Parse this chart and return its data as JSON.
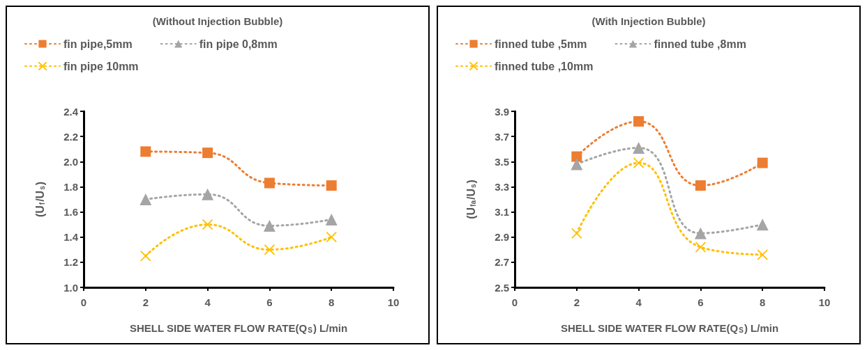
{
  "chart_data": [
    {
      "type": "line",
      "title": "(Without Injection Bubble)",
      "xlabel": "SHELL SIDE WATER FLOW RATE(Q$_{S}$) L/min",
      "ylabel": "(U$_{f}$/U$_{s}$)",
      "x": [
        2,
        4,
        6,
        8
      ],
      "series": [
        {
          "name": "fin pipe,5mm",
          "color": "#ed7d31",
          "marker": "square",
          "values": [
            2.08,
            2.07,
            1.83,
            1.81
          ]
        },
        {
          "name": "fin pipe 0,8mm",
          "color": "#a5a5a5",
          "marker": "triangle",
          "values": [
            1.7,
            1.74,
            1.49,
            1.54
          ]
        },
        {
          "name": "fin pipe 10mm",
          "color": "#ffc000",
          "marker": "cross",
          "values": [
            1.25,
            1.5,
            1.3,
            1.4
          ]
        }
      ],
      "xlim": [
        0,
        10
      ],
      "xticks": [
        0,
        2,
        4,
        6,
        8,
        10
      ],
      "ylim": [
        1.0,
        2.4
      ],
      "yticks": [
        "1.0",
        1.2,
        1.4,
        1.6,
        1.8,
        "2.0",
        2.2,
        2.4
      ],
      "grid": false,
      "legend": "top",
      "line_style": "dotted"
    },
    {
      "type": "line",
      "title": "(With Injection Bubble)",
      "xlabel": "SHELL SIDE WATER FLOW RATE(Q$_{S}$) L/min",
      "ylabel": "(U$_{fa}$/U$_{s}$)",
      "x": [
        2,
        4,
        6,
        8
      ],
      "series": [
        {
          "name": "finned tube ,5mm",
          "color": "#ed7d31",
          "marker": "square",
          "values": [
            3.54,
            3.82,
            3.31,
            3.49
          ]
        },
        {
          "name": "finned tube ,8mm",
          "color": "#a5a5a5",
          "marker": "triangle",
          "values": [
            3.48,
            3.61,
            2.93,
            3.0
          ]
        },
        {
          "name": "finned tube ,10mm",
          "color": "#ffc000",
          "marker": "cross",
          "values": [
            2.93,
            3.49,
            2.82,
            2.76
          ]
        }
      ],
      "xlim": [
        0,
        10
      ],
      "xticks": [
        0,
        2,
        4,
        6,
        8,
        10
      ],
      "ylim": [
        2.5,
        3.9
      ],
      "yticks": [
        2.5,
        2.7,
        2.9,
        3.1,
        3.3,
        3.5,
        3.7,
        3.9
      ],
      "grid": false,
      "legend": "top",
      "line_style": "dotted"
    }
  ]
}
